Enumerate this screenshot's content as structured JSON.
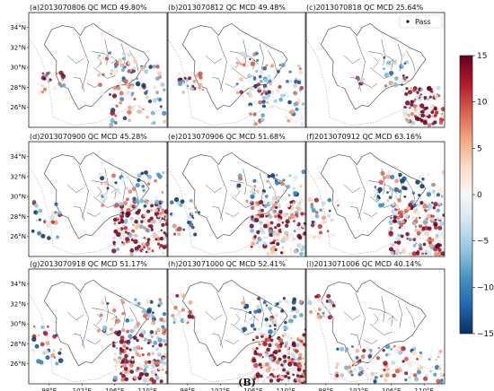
{
  "caption": "(B)",
  "colors": {
    "frame": "#222222",
    "boundary": "#555555",
    "pass_dot": "#111111",
    "colormap": [
      "#67001f",
      "#b2182b",
      "#d6604d",
      "#f4a582",
      "#fddbc7",
      "#f7f7f7",
      "#d1e5f0",
      "#92c5de",
      "#4393c3",
      "#2166ac",
      "#053061"
    ]
  },
  "chart_data": {
    "type": "heatmap",
    "layout": "3x3 grid of maps",
    "x_ticks": [
      "98°E",
      "102°E",
      "106°E",
      "110°E"
    ],
    "y_ticks": [
      "34°N",
      "32°N",
      "30°N",
      "28°N",
      "26°N"
    ],
    "xlim_deg": [
      95.5,
      112.5
    ],
    "ylim_deg": [
      24.0,
      35.5
    ],
    "legend": {
      "marker": "•",
      "label": "Pass",
      "placement": "upper-right",
      "panel": 2
    },
    "colorbar": {
      "min": -15,
      "max": 15,
      "ticks": [
        "15",
        "10",
        "5",
        "0",
        "−5",
        "−10",
        "−15"
      ]
    },
    "panels": [
      {
        "label": "(a)2013070806 QC MCD 49.80%",
        "pattern": "east_scattered",
        "seed": 11
      },
      {
        "label": "(b)2013070812 QC MCD 49.48%",
        "pattern": "east_scattered",
        "seed": 23
      },
      {
        "label": "(c)2013070818 QC MCD 25.64%",
        "pattern": "southeast_red",
        "seed": 37
      },
      {
        "label": "(d)2013070900 QC MCD 45.28%",
        "pattern": "southeast_dense",
        "seed": 41
      },
      {
        "label": "(e)2013070906 QC MCD 51.68%",
        "pattern": "southeast_dense",
        "seed": 53
      },
      {
        "label": "(f)2013070912 QC MCD 63.16%",
        "pattern": "southeast_dense",
        "seed": 67
      },
      {
        "label": "(g)2013070918 QC MCD 51.17%",
        "pattern": "southeast_dense",
        "seed": 71
      },
      {
        "label": "(h)2013071000 QC MCD 52.41%",
        "pattern": "southeast_band",
        "seed": 83
      },
      {
        "label": "(i)2013071006 QC MCD 40.14%",
        "pattern": "south_sparse",
        "seed": 97
      }
    ]
  }
}
